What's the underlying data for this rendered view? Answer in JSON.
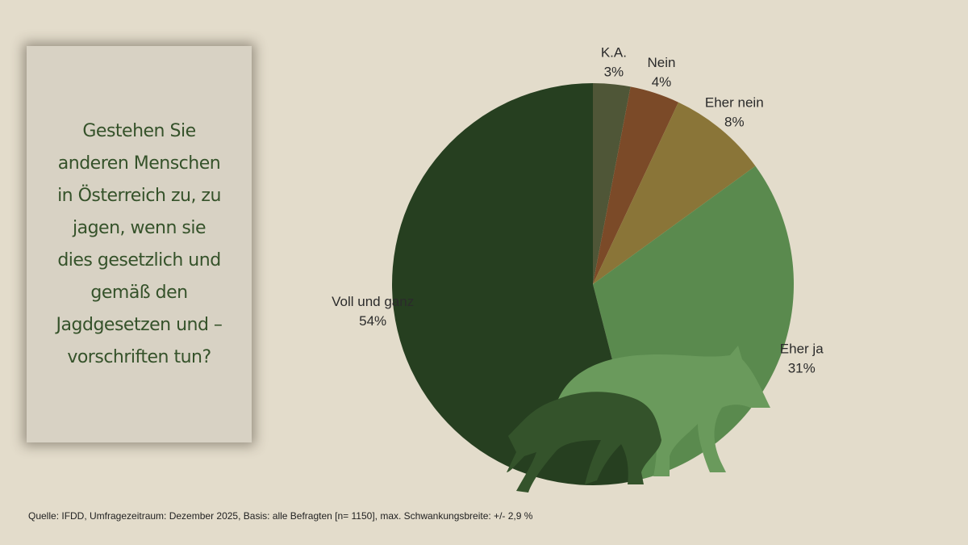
{
  "chart_data": {
    "type": "pie",
    "title": "Gestehen Sie anderen Menschen in Österreich zu, zu jagen, wenn sie dies gesetzlich und gemäß den Jagdgesetzen und –vorschriften tun?",
    "categories": [
      "K.A.",
      "Nein",
      "Eher nein",
      "Eher ja",
      "Voll und ganz"
    ],
    "values": [
      3,
      4,
      8,
      31,
      54
    ],
    "value_labels": [
      "3%",
      "4%",
      "8%",
      "31%",
      "54%"
    ],
    "colors": [
      "#4f5637",
      "#7b4a28",
      "#8a7538",
      "#5a8a4e",
      "#263f20"
    ],
    "source": "Quelle: IFDD, Umfragezeitraum: Dezember 2025, Basis: alle Befragten [n= 1150], max. Schwankungsbreite: +/- 2,9 %"
  }
}
